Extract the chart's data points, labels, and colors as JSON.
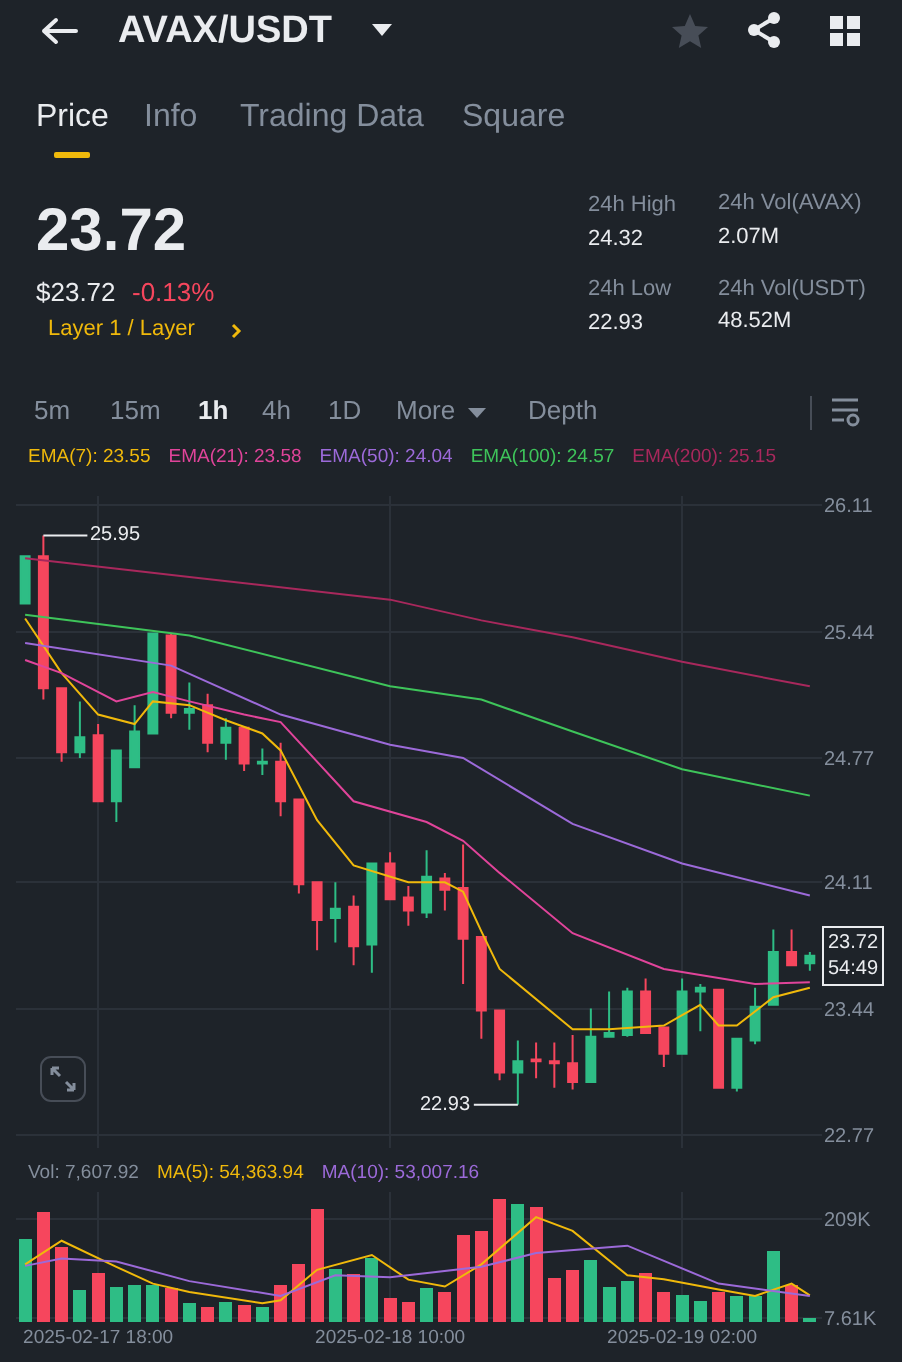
{
  "chart_data": [
    {
      "type": "other",
      "title": "AVAX/USDT",
      "annotations": [
        "Price",
        "Info",
        "Trading Data",
        "Square",
        "23.72",
        "$23.72",
        "-0.13%",
        "Layer 1 / Layer",
        "24h High",
        "24.32",
        "24h Vol(AVAX)",
        "2.07M",
        "24h Low",
        "22.93",
        "24h Vol(USDT)",
        "48.52M",
        "5m",
        "15m",
        "1h",
        "4h",
        "1D",
        "More",
        "Depth"
      ]
    },
    {
      "type": "candlestick",
      "x": [
        "2025-02-17T14:00",
        "2025-02-17T15:00",
        "2025-02-17T16:00",
        "2025-02-17T17:00",
        "2025-02-17T18:00",
        "2025-02-17T19:00",
        "2025-02-17T20:00",
        "2025-02-17T21:00",
        "2025-02-17T22:00",
        "2025-02-17T23:00",
        "2025-02-18T00:00",
        "2025-02-18T01:00",
        "2025-02-18T02:00",
        "2025-02-18T03:00",
        "2025-02-18T04:00",
        "2025-02-18T05:00",
        "2025-02-18T06:00",
        "2025-02-18T07:00",
        "2025-02-18T08:00",
        "2025-02-18T09:00",
        "2025-02-18T10:00",
        "2025-02-18T11:00",
        "2025-02-18T12:00",
        "2025-02-18T13:00",
        "2025-02-18T14:00",
        "2025-02-18T15:00",
        "2025-02-18T16:00",
        "2025-02-18T17:00",
        "2025-02-18T18:00",
        "2025-02-18T19:00",
        "2025-02-18T20:00",
        "2025-02-18T21:00",
        "2025-02-18T22:00",
        "2025-02-18T23:00",
        "2025-02-19T00:00",
        "2025-02-19T01:00",
        "2025-02-19T02:00",
        "2025-02-19T03:00",
        "2025-02-19T04:00",
        "2025-02-19T05:00",
        "2025-02-19T06:00",
        "2025-02-19T07:00",
        "2025-02-19T08:00",
        "2025-02-19T09:00"
      ],
      "ohlc": [
        [
          25.59,
          25.84,
          25.59,
          25.84
        ],
        [
          25.84,
          25.95,
          25.08,
          25.14
        ],
        [
          25.14,
          25.14,
          24.75,
          24.8
        ],
        [
          24.8,
          25.07,
          24.77,
          24.88
        ],
        [
          24.89,
          24.95,
          24.54,
          24.54
        ],
        [
          24.54,
          24.81,
          24.43,
          24.81
        ],
        [
          24.72,
          25.05,
          24.72,
          24.91
        ],
        [
          24.9,
          25.43,
          24.9,
          25.43
        ],
        [
          25.42,
          25.43,
          24.98,
          25.01
        ],
        [
          25.01,
          25.17,
          24.92,
          25.03
        ],
        [
          25.05,
          25.11,
          24.8,
          24.85
        ],
        [
          24.85,
          24.98,
          24.76,
          24.93
        ],
        [
          24.93,
          24.93,
          24.7,
          24.74
        ],
        [
          24.74,
          24.82,
          24.68,
          24.75
        ],
        [
          24.75,
          24.85,
          24.46,
          24.54
        ],
        [
          24.55,
          24.55,
          24.05,
          24.1
        ],
        [
          24.11,
          24.11,
          23.75,
          23.91
        ],
        [
          23.92,
          24.11,
          23.79,
          23.97
        ],
        [
          23.98,
          24.04,
          23.67,
          23.77
        ],
        [
          23.78,
          24.21,
          23.63,
          24.21
        ],
        [
          24.21,
          24.27,
          24.02,
          24.02
        ],
        [
          24.03,
          24.09,
          23.88,
          23.96
        ],
        [
          23.95,
          24.28,
          23.92,
          24.14
        ],
        [
          24.13,
          24.16,
          23.96,
          24.07
        ],
        [
          24.08,
          24.31,
          23.57,
          23.81
        ],
        [
          23.82,
          23.82,
          23.28,
          23.43
        ],
        [
          23.43,
          23.43,
          23.06,
          23.1
        ],
        [
          23.1,
          23.27,
          22.93,
          23.16
        ],
        [
          23.17,
          23.26,
          23.07,
          23.16
        ],
        [
          23.16,
          23.26,
          23.02,
          23.15
        ],
        [
          23.15,
          23.3,
          23.01,
          23.05
        ],
        [
          23.05,
          23.44,
          23.05,
          23.29
        ],
        [
          23.29,
          23.53,
          23.29,
          23.31
        ],
        [
          23.3,
          23.55,
          23.29,
          23.53
        ],
        [
          23.53,
          23.6,
          23.31,
          23.31
        ],
        [
          23.34,
          23.34,
          23.13,
          23.2
        ],
        [
          23.2,
          23.6,
          23.2,
          23.53
        ],
        [
          23.53,
          23.57,
          23.32,
          23.55
        ],
        [
          23.54,
          23.54,
          23.02,
          23.02
        ],
        [
          23.02,
          23.28,
          23.0,
          23.28
        ],
        [
          23.27,
          23.55,
          23.25,
          23.45
        ],
        [
          23.46,
          23.86,
          23.46,
          23.74
        ],
        [
          23.74,
          23.86,
          23.67,
          23.67
        ],
        [
          23.68,
          23.74,
          23.64,
          23.72
        ]
      ],
      "colors": [
        "#2ebd85",
        "#f6465d",
        "#f6465d",
        "#2ebd85",
        "#f6465d",
        "#2ebd85",
        "#2ebd85",
        "#2ebd85",
        "#f6465d",
        "#2ebd85",
        "#f6465d",
        "#2ebd85",
        "#f6465d",
        "#2ebd85",
        "#f6465d",
        "#f6465d",
        "#f6465d",
        "#2ebd85",
        "#f6465d",
        "#2ebd85",
        "#f6465d",
        "#f6465d",
        "#2ebd85",
        "#f6465d",
        "#f6465d",
        "#f6465d",
        "#f6465d",
        "#2ebd85",
        "#f6465d",
        "#f6465d",
        "#f6465d",
        "#2ebd85",
        "#2ebd85",
        "#2ebd85",
        "#f6465d",
        "#f6465d",
        "#2ebd85",
        "#2ebd85",
        "#f6465d",
        "#2ebd85",
        "#2ebd85",
        "#2ebd85",
        "#f6465d",
        "#2ebd85"
      ],
      "series": [
        {
          "name": "EMA(7): 23.55",
          "type": "line",
          "color": "#f0b90b",
          "x": [
            "2025-02-17T14:00",
            "2025-02-17T16:00",
            "2025-02-17T18:00",
            "2025-02-17T20:00",
            "2025-02-17T21:00",
            "2025-02-17T23:00",
            "2025-02-18T01:00",
            "2025-02-18T03:00",
            "2025-02-18T04:00",
            "2025-02-18T06:00",
            "2025-02-18T08:00",
            "2025-02-18T11:00",
            "2025-02-18T13:00",
            "2025-02-18T14:00",
            "2025-02-18T15:00",
            "2025-02-18T16:00",
            "2025-02-18T20:00",
            "2025-02-18T22:00",
            "2025-02-19T01:00",
            "2025-02-19T03:00",
            "2025-02-19T04:00",
            "2025-02-19T05:00",
            "2025-02-19T07:00",
            "2025-02-19T09:00"
          ],
          "values": [
            25.51,
            25.22,
            25.0,
            24.95,
            25.07,
            25.05,
            24.97,
            24.9,
            24.81,
            24.44,
            24.2,
            24.11,
            24.11,
            24.06,
            23.85,
            23.65,
            23.33,
            23.33,
            23.35,
            23.46,
            23.35,
            23.35,
            23.5,
            23.55
          ]
        },
        {
          "name": "EMA(21): 23.58",
          "type": "line",
          "color": "#e0449a",
          "x": [
            "2025-02-17T14:00",
            "2025-02-17T16:00",
            "2025-02-17T19:00",
            "2025-02-17T21:00",
            "2025-02-17T23:00",
            "2025-02-18T02:00",
            "2025-02-18T04:00",
            "2025-02-18T08:00",
            "2025-02-18T12:00",
            "2025-02-18T14:00",
            "2025-02-18T16:00",
            "2025-02-18T20:00",
            "2025-02-19T01:00",
            "2025-02-19T06:00",
            "2025-02-19T09:00"
          ],
          "values": [
            25.29,
            25.22,
            25.07,
            25.12,
            25.07,
            25.0,
            24.96,
            24.54,
            24.43,
            24.33,
            24.16,
            23.84,
            23.65,
            23.57,
            23.58
          ]
        },
        {
          "name": "EMA(50): 24.04",
          "type": "line",
          "color": "#9c6ad9",
          "x": [
            "2025-02-17T14:00",
            "2025-02-17T22:00",
            "2025-02-18T04:00",
            "2025-02-18T10:00",
            "2025-02-18T14:00",
            "2025-02-18T20:00",
            "2025-02-19T02:00",
            "2025-02-19T09:00"
          ],
          "values": [
            25.38,
            25.26,
            25.0,
            24.84,
            24.77,
            24.42,
            24.21,
            24.04
          ]
        },
        {
          "name": "EMA(100): 24.57",
          "type": "line",
          "color": "#3ec45a",
          "x": [
            "2025-02-17T14:00",
            "2025-02-17T23:00",
            "2025-02-18T10:00",
            "2025-02-18T15:00",
            "2025-02-18T20:00",
            "2025-02-19T02:00",
            "2025-02-19T09:00"
          ],
          "values": [
            25.53,
            25.42,
            25.15,
            25.08,
            24.91,
            24.71,
            24.57
          ]
        },
        {
          "name": "EMA(200): 25.15",
          "type": "line",
          "color": "#a8285c",
          "x": [
            "2025-02-17T14:00",
            "2025-02-17T23:00",
            "2025-02-18T10:00",
            "2025-02-18T15:00",
            "2025-02-18T20:00",
            "2025-02-19T02:00",
            "2025-02-19T09:00"
          ],
          "values": [
            25.83,
            25.73,
            25.61,
            25.5,
            25.41,
            25.28,
            25.15
          ]
        }
      ],
      "xlim": [
        "2025-02-17T13:30",
        "2025-02-19T09:40"
      ],
      "xticks": [
        {
          "value": "2025-02-17T18:00",
          "label": null
        },
        {
          "value": "2025-02-18T10:00",
          "label": null
        },
        {
          "value": "2025-02-19T02:00",
          "label": null
        }
      ],
      "ylim": [
        22.7,
        26.16
      ],
      "yticks": [
        26.11,
        25.44,
        24.77,
        24.11,
        23.44,
        22.77
      ],
      "grid": true,
      "legend": "top left",
      "tick_labels": "y",
      "annotations": [
        {
          "text": "25.95",
          "x": "2025-02-17T15:00",
          "y": 25.95
        },
        {
          "text": "22.93",
          "x": "2025-02-18T17:00",
          "y": 22.93
        },
        {
          "text": "23.72\n54:49",
          "x": "2025-02-19T09:00",
          "y": 23.72
        }
      ]
    },
    {
      "type": "bar",
      "x": [
        "2025-02-17T14:00",
        "2025-02-17T15:00",
        "2025-02-17T16:00",
        "2025-02-17T17:00",
        "2025-02-17T18:00",
        "2025-02-17T19:00",
        "2025-02-17T20:00",
        "2025-02-17T21:00",
        "2025-02-17T22:00",
        "2025-02-17T23:00",
        "2025-02-18T00:00",
        "2025-02-18T01:00",
        "2025-02-18T02:00",
        "2025-02-18T03:00",
        "2025-02-18T04:00",
        "2025-02-18T05:00",
        "2025-02-18T06:00",
        "2025-02-18T07:00",
        "2025-02-18T08:00",
        "2025-02-18T09:00",
        "2025-02-18T10:00",
        "2025-02-18T11:00",
        "2025-02-18T12:00",
        "2025-02-18T13:00",
        "2025-02-18T14:00",
        "2025-02-18T15:00",
        "2025-02-18T16:00",
        "2025-02-18T17:00",
        "2025-02-18T18:00",
        "2025-02-18T19:00",
        "2025-02-18T20:00",
        "2025-02-18T21:00",
        "2025-02-18T22:00",
        "2025-02-18T23:00",
        "2025-02-19T00:00",
        "2025-02-19T01:00",
        "2025-02-19T02:00",
        "2025-02-19T03:00",
        "2025-02-19T04:00",
        "2025-02-19T05:00",
        "2025-02-19T06:00",
        "2025-02-19T07:00",
        "2025-02-19T08:00",
        "2025-02-19T09:00"
      ],
      "values": [
        168000,
        224000,
        153000,
        66000,
        100000,
        72000,
        75000,
        75000,
        69000,
        38000,
        30000,
        40000,
        35000,
        30000,
        75000,
        117000,
        230000,
        108000,
        97000,
        131000,
        48000,
        40000,
        69000,
        61000,
        176000,
        184000,
        250000,
        239000,
        234000,
        89000,
        106000,
        125000,
        71000,
        83000,
        100000,
        60000,
        55000,
        42000,
        61000,
        53000,
        53000,
        145000,
        75000,
        8000
      ],
      "colors": [
        "#2ebd85",
        "#f6465d",
        "#f6465d",
        "#2ebd85",
        "#f6465d",
        "#2ebd85",
        "#2ebd85",
        "#2ebd85",
        "#f6465d",
        "#2ebd85",
        "#f6465d",
        "#2ebd85",
        "#f6465d",
        "#2ebd85",
        "#f6465d",
        "#f6465d",
        "#f6465d",
        "#2ebd85",
        "#f6465d",
        "#2ebd85",
        "#f6465d",
        "#f6465d",
        "#2ebd85",
        "#f6465d",
        "#f6465d",
        "#f6465d",
        "#f6465d",
        "#2ebd85",
        "#f6465d",
        "#f6465d",
        "#f6465d",
        "#2ebd85",
        "#2ebd85",
        "#2ebd85",
        "#f6465d",
        "#f6465d",
        "#2ebd85",
        "#2ebd85",
        "#f6465d",
        "#2ebd85",
        "#2ebd85",
        "#2ebd85",
        "#f6465d",
        "#2ebd85"
      ],
      "series": [
        {
          "name": "MA(5): 54,363.94",
          "type": "line",
          "color": "#f0b90b",
          "x": [
            "2025-02-17T14:00",
            "2025-02-17T16:00",
            "2025-02-17T19:00",
            "2025-02-17T21:00",
            "2025-02-17T23:00",
            "2025-02-18T03:00",
            "2025-02-18T04:00",
            "2025-02-18T06:00",
            "2025-02-18T09:00",
            "2025-02-18T11:00",
            "2025-02-18T13:00",
            "2025-02-18T15:00",
            "2025-02-18T18:00",
            "2025-02-18T20:00",
            "2025-02-18T23:00",
            "2025-02-19T01:00",
            "2025-02-19T04:00",
            "2025-02-19T06:00",
            "2025-02-19T08:00",
            "2025-02-19T09:00"
          ],
          "values": [
            117000,
            165000,
            112000,
            78000,
            61000,
            38000,
            44000,
            106000,
            136000,
            86000,
            72000,
            117000,
            213000,
            185000,
            95000,
            87000,
            66000,
            53000,
            78000,
            54000
          ]
        },
        {
          "name": "MA(10): 53,007.16",
          "type": "line",
          "color": "#9c6ad9",
          "x": [
            "2025-02-17T14:00",
            "2025-02-17T16:00",
            "2025-02-17T19:00",
            "2025-02-17T23:00",
            "2025-02-18T04:00",
            "2025-02-18T07:00",
            "2025-02-18T10:00",
            "2025-02-18T15:00",
            "2025-02-18T18:00",
            "2025-02-18T23:00",
            "2025-02-19T04:00",
            "2025-02-19T09:00"
          ],
          "values": [
            114000,
            129000,
            123000,
            83000,
            53000,
            95000,
            91000,
            112000,
            140000,
            155000,
            78000,
            53000
          ]
        }
      ],
      "xlim": [
        "2025-02-17T13:30",
        "2025-02-19T09:40"
      ],
      "xticks": [
        {
          "value": "2025-02-17T18:00",
          "label": "2025-02-17 18:00"
        },
        {
          "value": "2025-02-18T10:00",
          "label": "2025-02-18 10:00"
        },
        {
          "value": "2025-02-19T02:00",
          "label": "2025-02-19 02:00"
        }
      ],
      "ylim": [
        0,
        264000
      ],
      "yticks": [
        {
          "value": 7610,
          "label": "7.61K"
        },
        {
          "value": 209000,
          "label": "209K"
        }
      ],
      "grid": true,
      "legend": "top left",
      "annotations": [
        "Vol: 7,607.92"
      ]
    }
  ]
}
